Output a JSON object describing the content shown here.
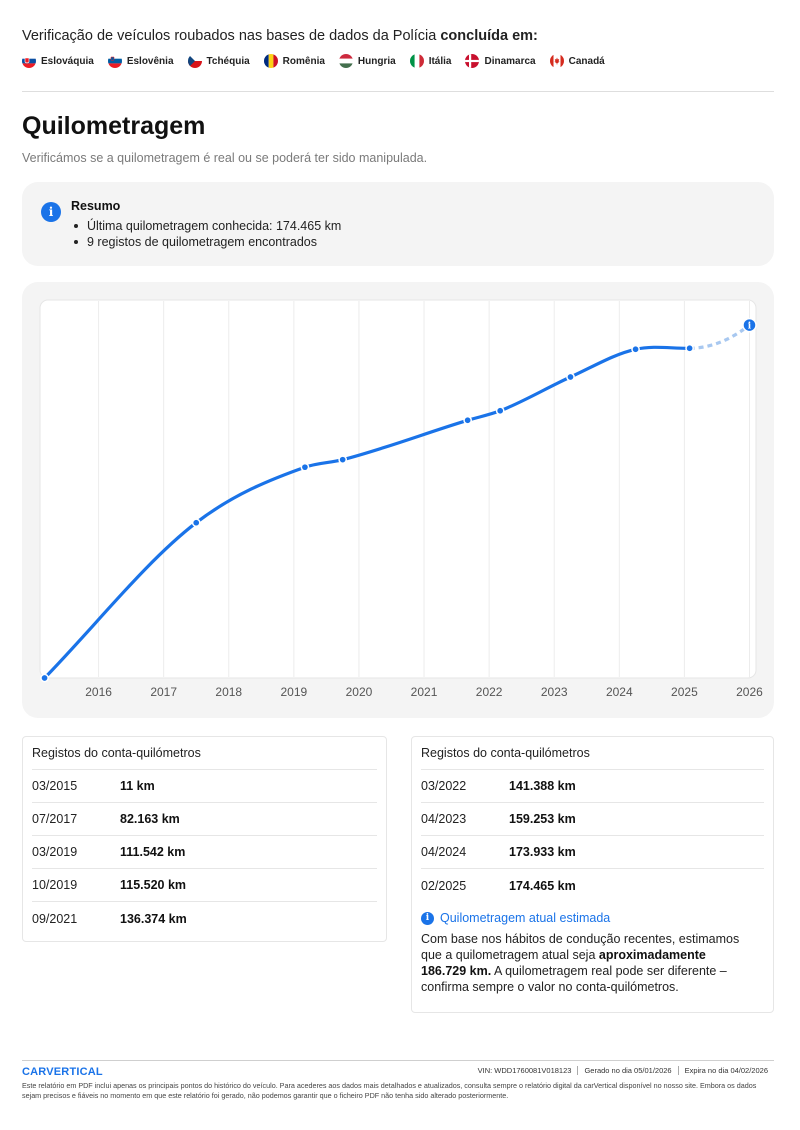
{
  "header": {
    "title_prefix": "Verificação de veículos roubados nas bases de dados da Polícia ",
    "title_bold": "concluída em:",
    "countries": [
      {
        "name": "Eslováquia"
      },
      {
        "name": "Eslovênia"
      },
      {
        "name": "Tchéquia"
      },
      {
        "name": "Romênia"
      },
      {
        "name": "Hungria"
      },
      {
        "name": "Itália"
      },
      {
        "name": "Dinamarca"
      },
      {
        "name": "Canadá"
      }
    ]
  },
  "section": {
    "title": "Quilometragem",
    "subtitle": "Verificámos se a quilometragem é real ou se poderá ter sido manipulada."
  },
  "summary": {
    "icon": "info-icon",
    "title": "Resumo",
    "items": [
      "Última quilometragem conhecida: 174.465 km",
      "9 registos de quilometragem encontrados"
    ]
  },
  "chart_data": {
    "type": "line",
    "title": "",
    "xlabel": "",
    "ylabel": "",
    "x_ticks": [
      "2016",
      "2017",
      "2018",
      "2019",
      "2020",
      "2021",
      "2022",
      "2023",
      "2024",
      "2025",
      "2026"
    ],
    "x_range": [
      2015.1,
      2026.1
    ],
    "ylim": [
      0,
      200000
    ],
    "series": [
      {
        "name": "Registos do conta-quilómetros",
        "x": [
          2015.17,
          2017.5,
          2019.17,
          2019.75,
          2021.67,
          2022.17,
          2023.25,
          2024.25,
          2025.08
        ],
        "values": [
          11,
          82163,
          111542,
          115520,
          136374,
          141388,
          159253,
          173933,
          174465
        ]
      },
      {
        "name": "Quilometragem atual estimada",
        "x": [
          2025.08,
          2026.0
        ],
        "values": [
          174465,
          186729
        ],
        "style": "dashed"
      }
    ],
    "grid": true,
    "colors": {
      "line": "#1a73e8",
      "estimate": "#a8c8f0"
    }
  },
  "records_left": {
    "title": "Registos do conta-quilómetros",
    "rows": [
      {
        "date": "03/2015",
        "value": "11 km"
      },
      {
        "date": "07/2017",
        "value": "82.163 km"
      },
      {
        "date": "03/2019",
        "value": "111.542 km"
      },
      {
        "date": "10/2019",
        "value": "115.520 km"
      },
      {
        "date": "09/2021",
        "value": "136.374 km"
      }
    ]
  },
  "records_right": {
    "title": "Registos do conta-quilómetros",
    "rows": [
      {
        "date": "03/2022",
        "value": "141.388 km"
      },
      {
        "date": "04/2023",
        "value": "159.253 km"
      },
      {
        "date": "04/2024",
        "value": "173.933 km"
      },
      {
        "date": "02/2025",
        "value": "174.465 km"
      }
    ],
    "estimate": {
      "title": "Quilometragem atual estimada",
      "text_1": "Com base nos hábitos de condução recentes, estimamos que a quilometragem atual seja ",
      "text_bold": "aproximadamente 186.729 km.",
      "text_2": " A quilometragem real pode ser diferente – confirma sempre o valor no conta-quilómetros."
    }
  },
  "footer": {
    "logo_part1": "CAR",
    "logo_part2": "VERTICAL",
    "vin": "VIN: WDD1760081V018123",
    "generated": "Gerado no dia 05/01/2026",
    "expires": "Expira no dia 04/02/2026",
    "disclaimer": "Este relatório em PDF inclui apenas os principais pontos do histórico do veículo. Para acederes aos dados mais detalhados e atualizados, consulta sempre o relatório digital da carVertical disponível no nosso site. Embora os dados sejam precisos e fiáveis no momento em que este relatório foi gerado, não podemos garantir que o ficheiro PDF não tenha sido alterado posteriormente."
  },
  "colors": {
    "accent": "#1a73e8",
    "panel": "#f4f4f4"
  }
}
